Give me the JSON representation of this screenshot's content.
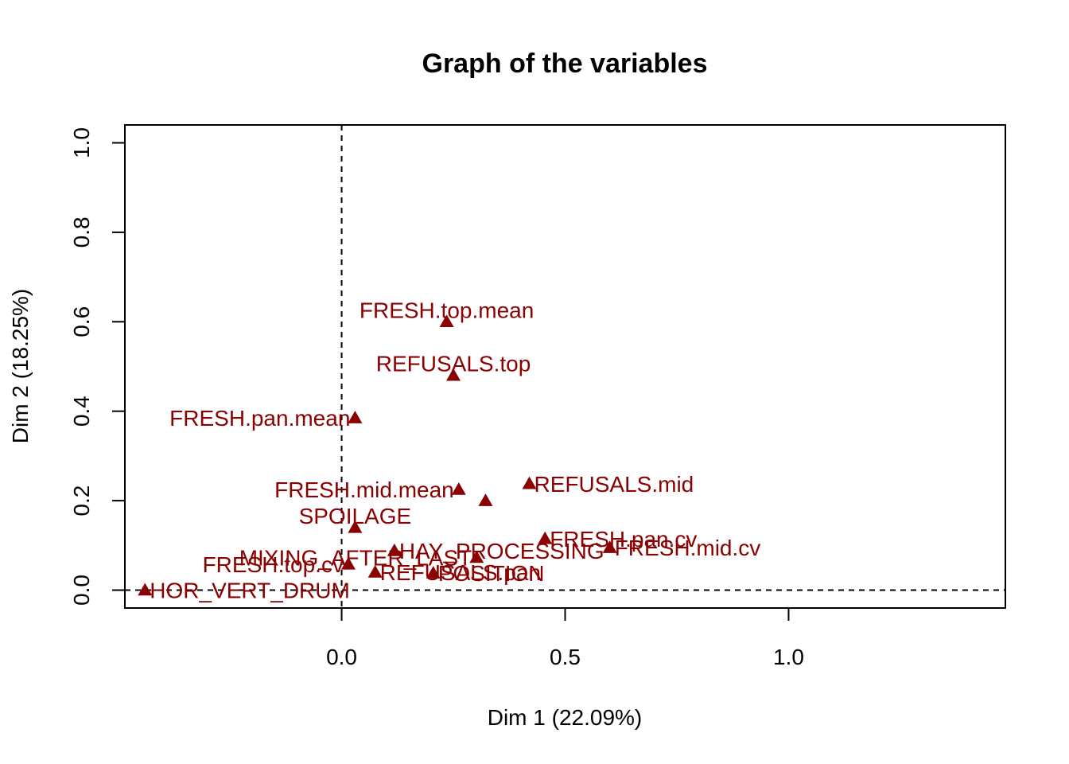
{
  "chart_data": {
    "type": "scatter",
    "title": "Graph of the variables",
    "xlabel": "Dim 1 (22.09%)",
    "ylabel": "Dim 2 (18.25%)",
    "xlim": [
      -0.485,
      1.485
    ],
    "ylim": [
      -0.04,
      1.04
    ],
    "xticks": [
      0.0,
      0.5,
      1.0
    ],
    "xtick_labels": [
      "0.0",
      "0.5",
      "1.0"
    ],
    "yticks": [
      0.0,
      0.2,
      0.4,
      0.6,
      0.8,
      1.0
    ],
    "ytick_labels": [
      "0.0",
      "0.2",
      "0.4",
      "0.6",
      "0.8",
      "1.0"
    ],
    "reference_lines": {
      "x": 0,
      "y": 0,
      "style": "dashed"
    },
    "marker": "triangle",
    "color": "#8B0000",
    "points": [
      {
        "label": "FRESH.top.mean",
        "x": 0.235,
        "y": 0.6,
        "label_pos": "above"
      },
      {
        "label": "REFUSALS.top",
        "x": 0.25,
        "y": 0.48,
        "label_pos": "above"
      },
      {
        "label": "FRESH.pan.mean",
        "x": 0.03,
        "y": 0.385,
        "label_pos": "left"
      },
      {
        "label": "FRESH.mid.mean",
        "x": 0.262,
        "y": 0.225,
        "label_pos": "left"
      },
      {
        "label": "",
        "x": 0.322,
        "y": 0.2,
        "label_pos": "none"
      },
      {
        "label": "REFUSALS.mid",
        "x": 0.42,
        "y": 0.238,
        "label_pos": "right"
      },
      {
        "label": "SPOILAGE",
        "x": 0.03,
        "y": 0.14,
        "label_pos": "above"
      },
      {
        "label": "FRESH.pan.cv",
        "x": 0.455,
        "y": 0.115,
        "label_pos": "right"
      },
      {
        "label": "FRESH.mid.cv",
        "x": 0.6,
        "y": 0.095,
        "label_pos": "right"
      },
      {
        "label": "HAY_PROCESSING",
        "x": 0.118,
        "y": 0.088,
        "label_pos": "right"
      },
      {
        "label": "FRESH.top.cv",
        "x": 0.015,
        "y": 0.058,
        "label_pos": "left"
      },
      {
        "label": "MIXING_AFTER_LAST",
        "x": 0.302,
        "y": 0.073,
        "label_pos": "left"
      },
      {
        "label": "REFUSALS.pan",
        "x": 0.075,
        "y": 0.04,
        "label_pos": "right"
      },
      {
        "label": "POSITION",
        "x": 0.205,
        "y": 0.038,
        "label_pos": "right"
      },
      {
        "label": "HOR_VERT_DRUM",
        "x": -0.44,
        "y": 0.0,
        "label_pos": "right"
      }
    ]
  }
}
